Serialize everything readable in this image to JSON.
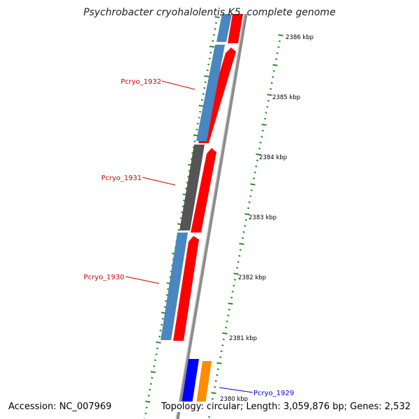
{
  "title": "Psychrobacter cryohalolentis K5, complete genome",
  "footer": {
    "accession": "Accession: NC_007969",
    "topology": "Topology: circular; Length: 3,059,876 bp; Genes: 2,532"
  },
  "colors": {
    "backbone": "#8c8c8c",
    "tick": "#2e8b2e",
    "label_red": "#cc0000",
    "label_blue": "#0000cc",
    "gene_red": "#ff0000",
    "gene_blue": "#4a86c0",
    "gene_gray": "#555555",
    "gene_navy": "#0000ff",
    "gene_orange": "#ff8c00"
  },
  "scale_labels": [
    "2386 kbp",
    "2385 kbp",
    "2384 kbp",
    "2383 kbp",
    "2382 kbp",
    "2381 kbp",
    "2380 kbp"
  ],
  "gene_labels": [
    {
      "name": "Pcryo_1932",
      "color": "red"
    },
    {
      "name": "Pcryo_1931",
      "color": "red"
    },
    {
      "name": "Pcryo_1930",
      "color": "red"
    },
    {
      "name": "Pcryo_1929",
      "color": "blue"
    }
  ]
}
